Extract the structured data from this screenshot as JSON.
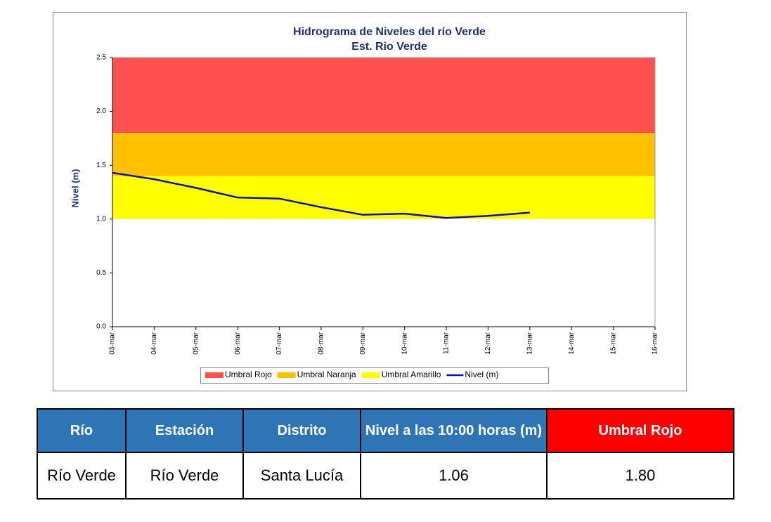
{
  "chart_data": {
    "type": "line",
    "title": "Hidrograma de Niveles del río Verde",
    "subtitle": "Est. Rio Verde",
    "y_label": "Nivel (m)",
    "categories": [
      "03-mar",
      "04-mar",
      "05-mar",
      "06-mar",
      "07-mar",
      "08-mar",
      "09-mar",
      "10-mar",
      "11-mar",
      "12-mar",
      "13-mar",
      "14-mar",
      "15-mar",
      "16-mar"
    ],
    "bands": [
      {
        "name": "Umbral Rojo",
        "color": "#ff5050",
        "from": 1.8,
        "to": 2.5
      },
      {
        "name": "Umbral Naranja",
        "color": "#ffc000",
        "from": 1.4,
        "to": 1.8
      },
      {
        "name": "Umbral Amarillo",
        "color": "#ffff00",
        "from": 1.0,
        "to": 1.4
      }
    ],
    "series": [
      {
        "name": "Nivel (m)",
        "color": "#1010b0",
        "values": [
          1.43,
          1.37,
          1.29,
          1.2,
          1.19,
          1.11,
          1.04,
          1.05,
          1.01,
          1.03,
          1.06,
          null,
          null,
          null
        ]
      }
    ],
    "ylim": [
      0,
      2.5
    ],
    "yticks": [
      {
        "value": 0,
        "label": "0.0"
      },
      0.5,
      {
        "value": 1,
        "label": "1.0"
      },
      1.5,
      {
        "value": 2,
        "label": "2.0"
      },
      2.5
    ],
    "grid": false,
    "legend": "bottom"
  },
  "table": {
    "headers": [
      "Río",
      "Estación",
      "Distrito",
      "Nivel a las 10:00 horas (m)",
      "Umbral Rojo"
    ],
    "rows": [
      [
        "Río Verde",
        "Río Verde",
        "Santa Lucía",
        "1.06",
        "1.80"
      ]
    ]
  }
}
